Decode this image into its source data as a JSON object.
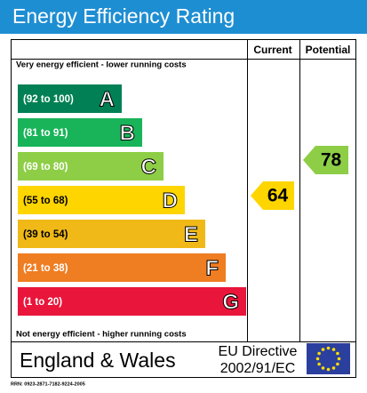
{
  "header": {
    "title": "Energy Efficiency Rating"
  },
  "columns": {
    "current": "Current",
    "potential": "Potential"
  },
  "top_note": "Very energy efficient - lower running costs",
  "bottom_note": "Not energy efficient - higher running costs",
  "bands": [
    {
      "range": "(92 to 100)",
      "letter": "A",
      "color": "#008054"
    },
    {
      "range": "(81 to 91)",
      "letter": "B",
      "color": "#19b459"
    },
    {
      "range": "(69 to 80)",
      "letter": "C",
      "color": "#8dce46"
    },
    {
      "range": "(55 to 68)",
      "letter": "D",
      "color": "#ffd500"
    },
    {
      "range": "(39 to 54)",
      "letter": "E",
      "color": "#f0b918"
    },
    {
      "range": "(21 to 38)",
      "letter": "F",
      "color": "#ef7d22"
    },
    {
      "range": "(1 to 20)",
      "letter": "G",
      "color": "#e9153b"
    }
  ],
  "current": {
    "value": 64,
    "color": "#ffd500"
  },
  "potential": {
    "value": 78,
    "color": "#8dce46"
  },
  "footer": {
    "region": "England & Wales",
    "directive_line1": "EU Directive",
    "directive_line2": "2002/91/EC",
    "rrn": "RRN: 0923-2871-7182-9224-2005"
  }
}
